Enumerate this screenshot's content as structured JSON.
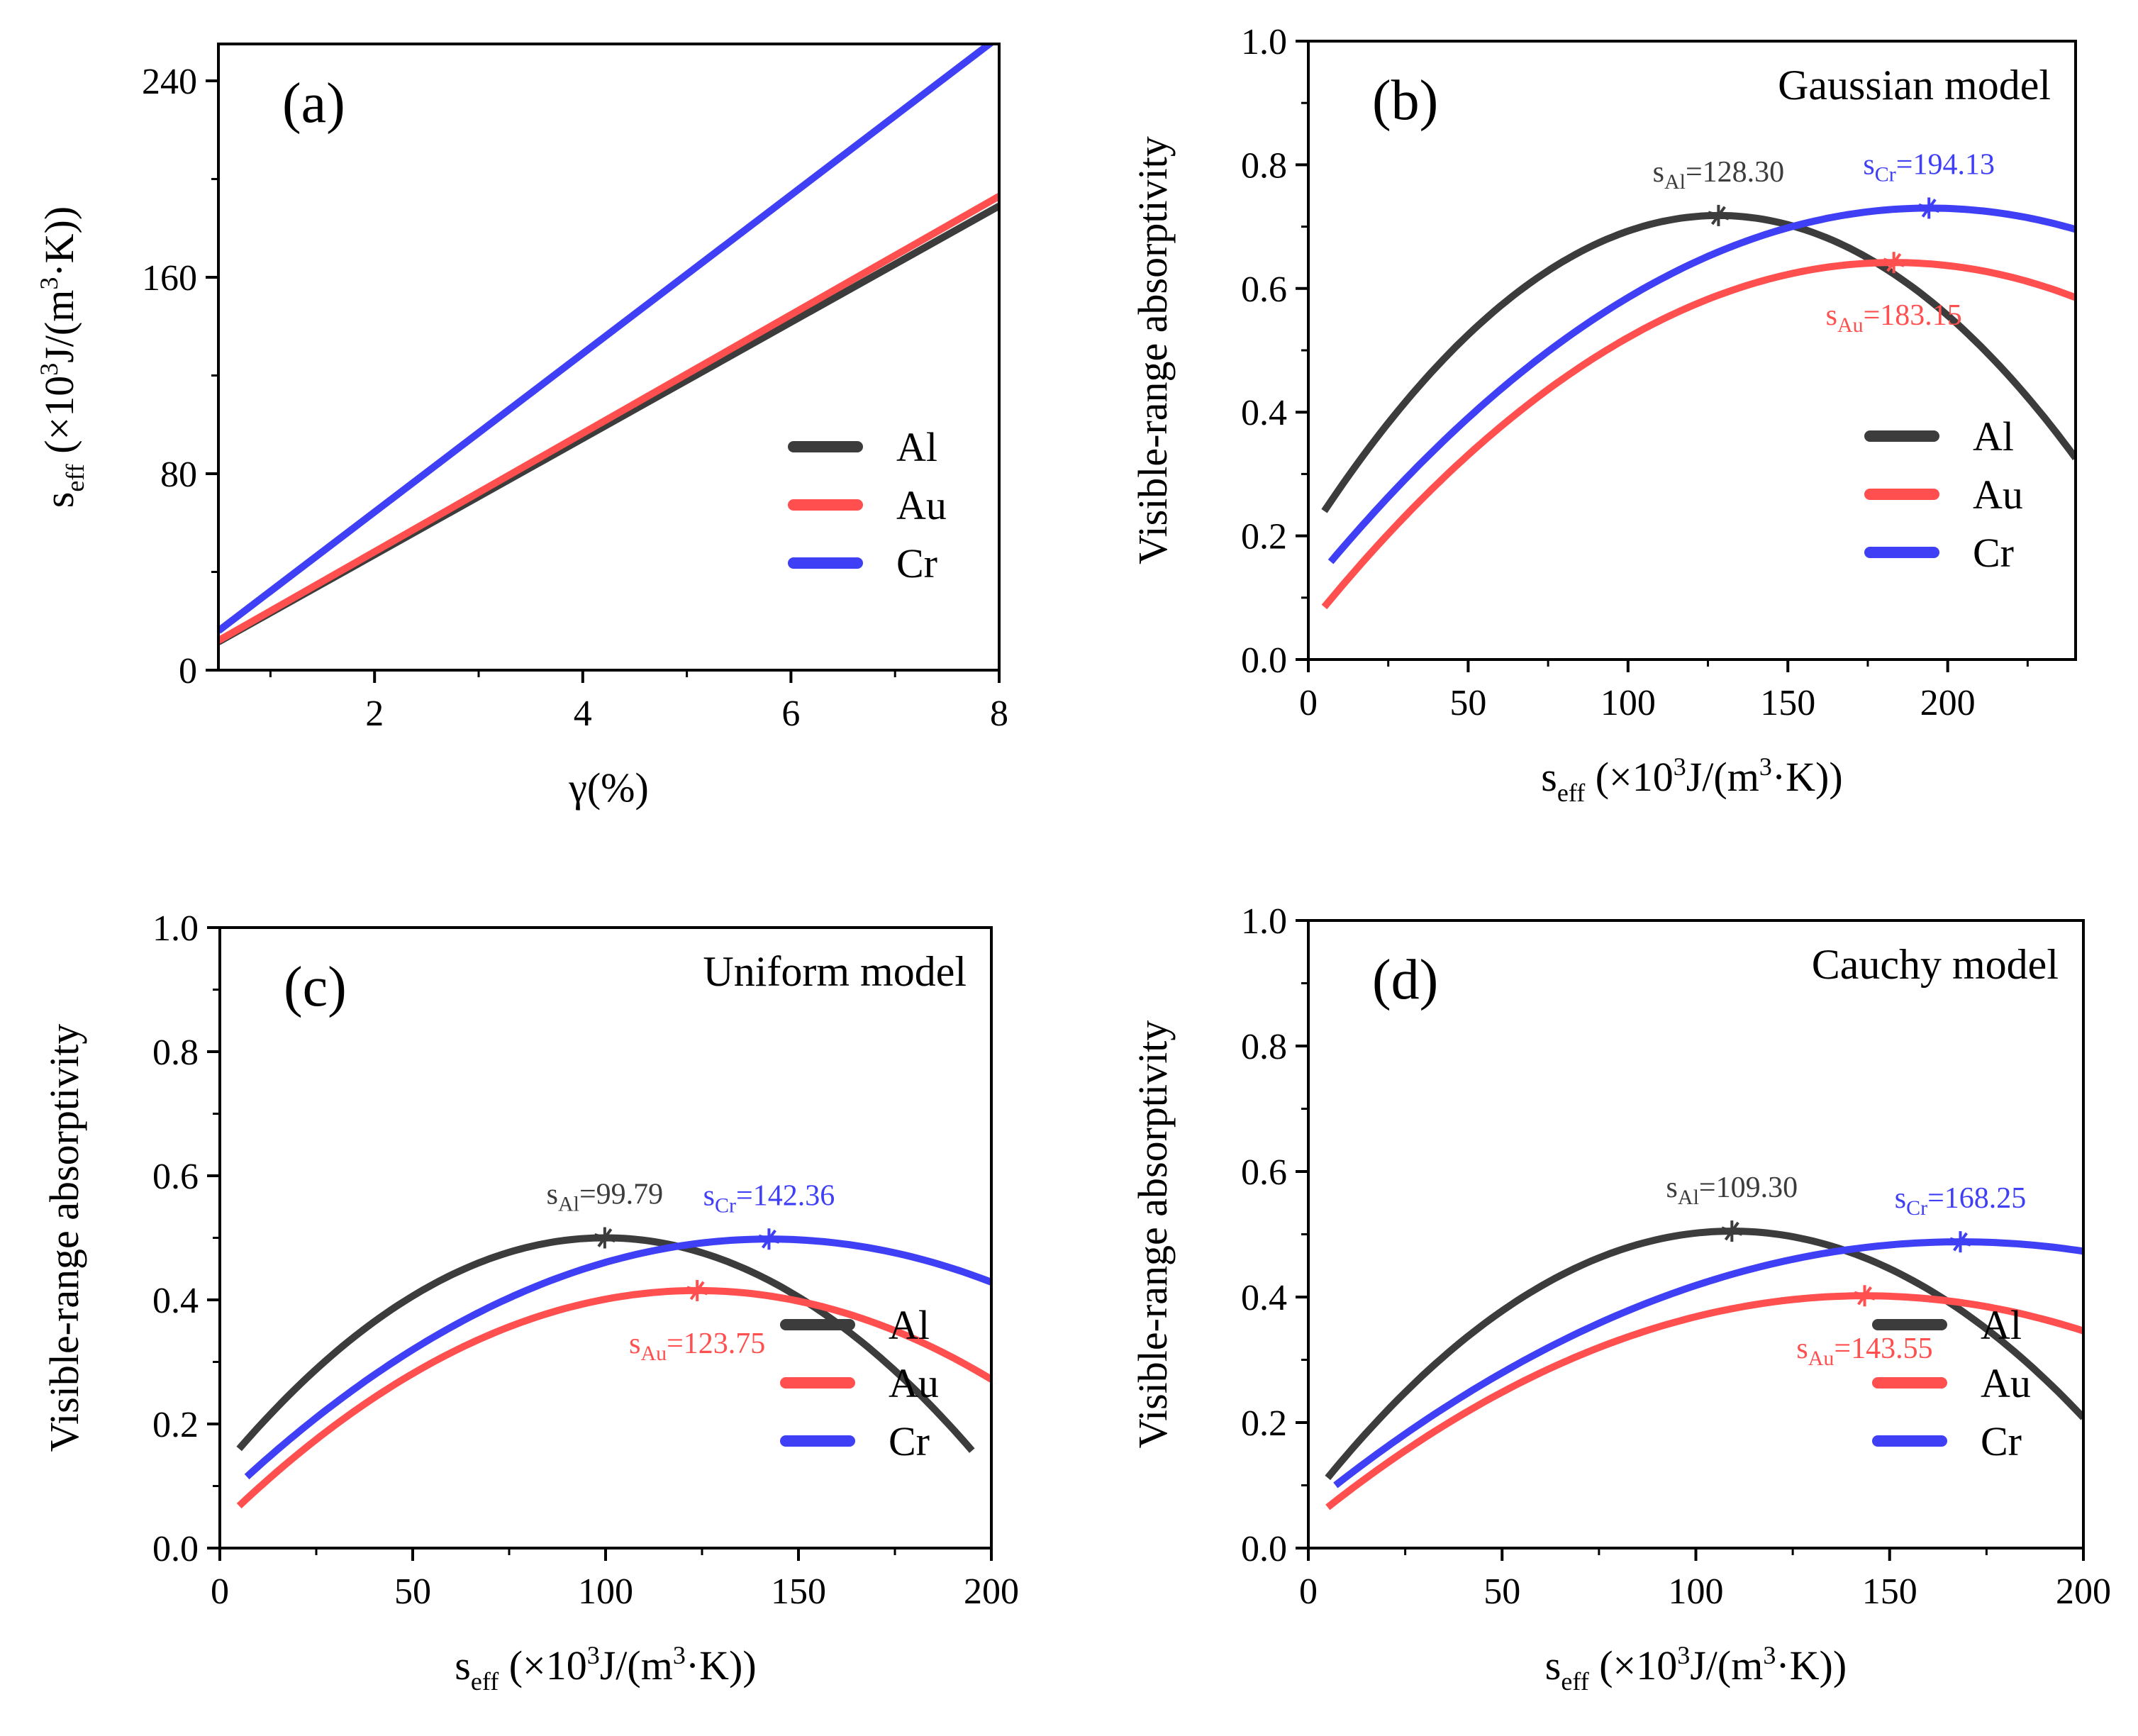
{
  "colors": {
    "Al": "#3c3c3c",
    "Au": "#ff4f4f",
    "Cr": "#3f3ff5"
  },
  "chart_data": [
    {
      "id": "a",
      "type": "line",
      "panel_label": "(a)",
      "title": "",
      "xlabel": "γ(%)",
      "ylabel": {
        "main": "s",
        "sub": "eff",
        "unit_pre": " (×10",
        "sup": "3",
        "unit_mid": "J/(m",
        "sup2": "3",
        "unit_post": "·K))"
      },
      "xlim": [
        0.5,
        8
      ],
      "ylim": [
        0,
        255
      ],
      "xticks": [
        2,
        4,
        6,
        8
      ],
      "xtick_labels": [
        "2",
        "4",
        "6",
        "8"
      ],
      "xminor": [
        1,
        3,
        5,
        7
      ],
      "yticks": [
        0,
        80,
        160,
        240
      ],
      "ytick_labels": [
        "0",
        "80",
        "160",
        "240"
      ],
      "yminor": [
        40,
        120,
        200
      ],
      "legend": {
        "position": "lower-right",
        "entries": [
          "Al",
          "Au",
          "Cr"
        ]
      },
      "series": [
        {
          "name": "Al",
          "x": [
            0.5,
            8
          ],
          "y": [
            11.5,
            189
          ]
        },
        {
          "name": "Au",
          "x": [
            0.5,
            8
          ],
          "y": [
            12,
            193
          ]
        },
        {
          "name": "Cr",
          "x": [
            0.5,
            8
          ],
          "y": [
            16,
            258
          ]
        }
      ]
    },
    {
      "id": "b",
      "type": "line",
      "panel_label": "(b)",
      "title": "Gaussian model",
      "xlabel": {
        "main": "s",
        "sub": "eff",
        "unit_pre": " (×10",
        "sup": "3",
        "unit_mid": "J/(m",
        "sup2": "3",
        "unit_post": "·K))"
      },
      "ylabel": "Visible-range absorptivity",
      "xlim": [
        0,
        240
      ],
      "ylim": [
        0,
        1.0
      ],
      "xticks": [
        0,
        50,
        100,
        150,
        200
      ],
      "xtick_labels": [
        "0",
        "50",
        "100",
        "150",
        "200"
      ],
      "xminor": [
        25,
        75,
        125,
        175,
        225
      ],
      "yticks": [
        0,
        0.2,
        0.4,
        0.6,
        0.8,
        1.0
      ],
      "ytick_labels": [
        "0.0",
        "0.2",
        "0.4",
        "0.6",
        "0.8",
        "1.0"
      ],
      "yminor": [
        0.1,
        0.3,
        0.5,
        0.7,
        0.9
      ],
      "legend": {
        "position": "lower-right",
        "entries": [
          "Al",
          "Au",
          "Cr"
        ]
      },
      "series": [
        {
          "name": "Al",
          "xstart": 5,
          "xend": 240,
          "peak_x": 128.3,
          "peak_y": 0.718,
          "y_start": 0.24
        },
        {
          "name": "Au",
          "xstart": 5,
          "xend": 240,
          "peak_x": 183.15,
          "peak_y": 0.642,
          "y_start": 0.085
        },
        {
          "name": "Cr",
          "xstart": 7,
          "xend": 240,
          "peak_x": 194.13,
          "peak_y": 0.73,
          "y_start": 0.158
        }
      ],
      "annotations": [
        {
          "series": "Al",
          "sym": "s",
          "sub": "Al",
          "value": "=128.30",
          "pos": "above"
        },
        {
          "series": "Au",
          "sym": "s",
          "sub": "Au",
          "value": "=183.15",
          "pos": "below"
        },
        {
          "series": "Cr",
          "sym": "s",
          "sub": "Cr",
          "value": "=194.13",
          "pos": "above"
        }
      ]
    },
    {
      "id": "c",
      "type": "line",
      "panel_label": "(c)",
      "title": "Uniform model",
      "xlabel": {
        "main": "s",
        "sub": "eff",
        "unit_pre": " (×10",
        "sup": "3",
        "unit_mid": "J/(m",
        "sup2": "3",
        "unit_post": "·K))"
      },
      "ylabel": "Visible-range absorptivity",
      "xlim": [
        0,
        200
      ],
      "ylim": [
        0,
        1.0
      ],
      "xticks": [
        0,
        50,
        100,
        150,
        200
      ],
      "xtick_labels": [
        "0",
        "50",
        "100",
        "150",
        "200"
      ],
      "xminor": [
        25,
        75,
        125,
        175
      ],
      "yticks": [
        0,
        0.2,
        0.4,
        0.6,
        0.8,
        1.0
      ],
      "ytick_labels": [
        "0.0",
        "0.2",
        "0.4",
        "0.6",
        "0.8",
        "1.0"
      ],
      "yminor": [
        0.1,
        0.3,
        0.5,
        0.7,
        0.9
      ],
      "legend": {
        "position": "lower-right",
        "entries": [
          "Al",
          "Au",
          "Cr"
        ]
      },
      "series": [
        {
          "name": "Al",
          "xstart": 5,
          "xend": 195,
          "peak_x": 99.79,
          "peak_y": 0.5,
          "y_start": 0.16
        },
        {
          "name": "Au",
          "xstart": 5,
          "xend": 200,
          "peak_x": 123.75,
          "peak_y": 0.415,
          "y_start": 0.068
        },
        {
          "name": "Cr",
          "xstart": 7,
          "xend": 200,
          "peak_x": 142.36,
          "peak_y": 0.498,
          "y_start": 0.115
        }
      ],
      "annotations": [
        {
          "series": "Al",
          "sym": "s",
          "sub": "Al",
          "value": "=99.79",
          "pos": "above"
        },
        {
          "series": "Au",
          "sym": "s",
          "sub": "Au",
          "value": "=123.75",
          "pos": "below"
        },
        {
          "series": "Cr",
          "sym": "s",
          "sub": "Cr",
          "value": "=142.36",
          "pos": "above"
        }
      ]
    },
    {
      "id": "d",
      "type": "line",
      "panel_label": "(d)",
      "title": "Cauchy model",
      "xlabel": {
        "main": "s",
        "sub": "eff",
        "unit_pre": " (×10",
        "sup": "3",
        "unit_mid": "J/(m",
        "sup2": "3",
        "unit_post": "·K))"
      },
      "ylabel": "Visible-range absorptivity",
      "xlim": [
        0,
        200
      ],
      "ylim": [
        0,
        1.0
      ],
      "xticks": [
        0,
        50,
        100,
        150,
        200
      ],
      "xtick_labels": [
        "0",
        "50",
        "100",
        "150",
        "200"
      ],
      "xminor": [
        25,
        75,
        125,
        175
      ],
      "yticks": [
        0,
        0.2,
        0.4,
        0.6,
        0.8,
        1.0
      ],
      "ytick_labels": [
        "0.0",
        "0.2",
        "0.4",
        "0.6",
        "0.8",
        "1.0"
      ],
      "yminor": [
        0.1,
        0.3,
        0.5,
        0.7,
        0.9
      ],
      "legend": {
        "position": "lower-right",
        "entries": [
          "Al",
          "Au",
          "Cr"
        ]
      },
      "series": [
        {
          "name": "Al",
          "xstart": 5,
          "xend": 200,
          "peak_x": 109.3,
          "peak_y": 0.505,
          "y_start": 0.112
        },
        {
          "name": "Au",
          "xstart": 5,
          "xend": 200,
          "peak_x": 143.55,
          "peak_y": 0.402,
          "y_start": 0.065
        },
        {
          "name": "Cr",
          "xstart": 7,
          "xend": 200,
          "peak_x": 168.25,
          "peak_y": 0.488,
          "y_start": 0.1
        }
      ],
      "annotations": [
        {
          "series": "Al",
          "sym": "s",
          "sub": "Al",
          "value": "=109.30",
          "pos": "above"
        },
        {
          "series": "Au",
          "sym": "s",
          "sub": "Au",
          "value": "=143.55",
          "pos": "below"
        },
        {
          "series": "Cr",
          "sym": "s",
          "sub": "Cr",
          "value": "=168.25",
          "pos": "above"
        }
      ]
    }
  ]
}
